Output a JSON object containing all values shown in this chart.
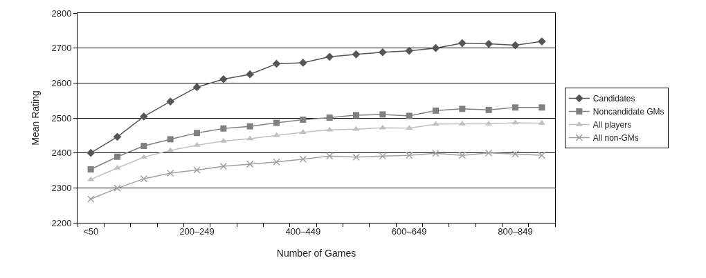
{
  "chart_data": {
    "type": "line",
    "xlabel": "Number of Games",
    "ylabel": "Mean Rating",
    "categories": [
      "<50",
      null,
      null,
      null,
      "200–249",
      null,
      null,
      null,
      "400–449",
      null,
      null,
      null,
      "600–649",
      null,
      null,
      null,
      "800–849",
      null
    ],
    "ylim": [
      2200,
      2800
    ],
    "yticks": [
      2200,
      2300,
      2400,
      2500,
      2600,
      2700,
      2800
    ],
    "grid": "y",
    "legend": "right",
    "line_style": "solid",
    "series": [
      {
        "name": "Candidates",
        "color": "#555555",
        "marker": "diamond",
        "values": [
          2400,
          2446,
          2504,
          2547,
          2588,
          2611,
          2625,
          2655,
          2658,
          2675,
          2682,
          2688,
          2692,
          2700,
          2714,
          2712,
          2708,
          2719
        ]
      },
      {
        "name": "Noncandidate GMs",
        "color": "#808080",
        "marker": "square",
        "values": [
          2353,
          2389,
          2420,
          2439,
          2457,
          2470,
          2476,
          2486,
          2495,
          2501,
          2508,
          2510,
          2506,
          2521,
          2526,
          2523,
          2530,
          2530
        ]
      },
      {
        "name": "All players",
        "color": "#c0c0c0",
        "marker": "triangle",
        "values": [
          2324,
          2357,
          2388,
          2407,
          2422,
          2434,
          2441,
          2450,
          2459,
          2466,
          2468,
          2472,
          2471,
          2482,
          2483,
          2483,
          2486,
          2485
        ]
      },
      {
        "name": "All non-GMs",
        "color": "#a0a0a0",
        "marker": "cross",
        "values": [
          2268,
          2299,
          2326,
          2342,
          2351,
          2362,
          2368,
          2374,
          2382,
          2391,
          2388,
          2391,
          2393,
          2399,
          2393,
          2400,
          2397,
          2393
        ]
      }
    ]
  }
}
